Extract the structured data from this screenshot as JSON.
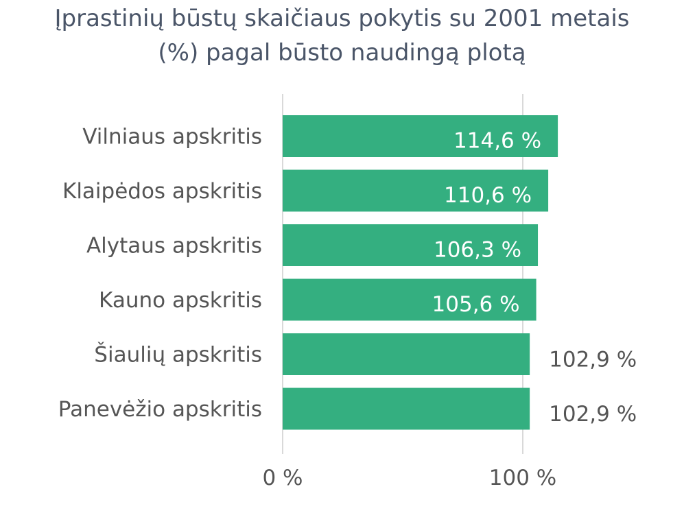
{
  "chart_data": {
    "type": "bar",
    "orientation": "horizontal",
    "title": "Įprastinių būstų skaičiaus pokytis su 2001 metais (%) pagal būsto naudingą plotą",
    "title_lines": [
      "Įprastinių būstų skaičiaus pokytis su 2001 metais",
      "(%) pagal būsto naudingą plotą"
    ],
    "categories": [
      "Vilniaus apskritis",
      "Klaipėdos apskritis",
      "Alytaus apskritis",
      "Kauno apskritis",
      "Šiaulių apskritis",
      "Panevėžio apskritis"
    ],
    "values": [
      114.6,
      110.6,
      106.3,
      105.6,
      102.9,
      102.9
    ],
    "value_labels": [
      "114,6 %",
      "110,6 %",
      "106,3 %",
      "105,6 %",
      "102,9 %",
      "102,9 %"
    ],
    "label_inside": [
      true,
      true,
      true,
      true,
      false,
      false
    ],
    "xticks": [
      0,
      100
    ],
    "xtick_labels": [
      "0 %",
      "100 %"
    ],
    "xlim": [
      0,
      100
    ],
    "xlabel": "",
    "ylabel": "",
    "grid": true,
    "legend": "none",
    "bar_color": "#34af80",
    "grid_color": "#d9d9d9"
  }
}
